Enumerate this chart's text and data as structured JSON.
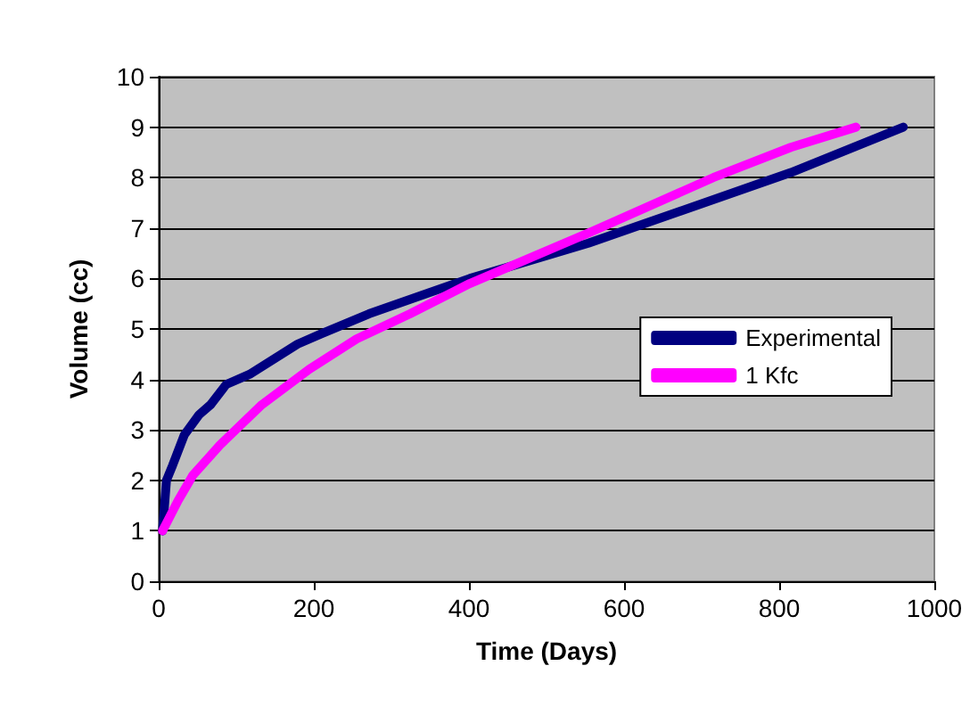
{
  "chart_data": {
    "type": "line",
    "xlabel": "Time (Days)",
    "ylabel": "Volume (cc)",
    "xlim": [
      0,
      1000
    ],
    "xticks": [
      0,
      200,
      400,
      600,
      800,
      1000
    ],
    "ylim": [
      0,
      10
    ],
    "yticks": [
      0,
      1,
      2,
      3,
      4,
      5,
      6,
      7,
      8,
      9,
      10
    ],
    "grid": "y",
    "legend": "right",
    "marker": "none",
    "line_style": "solid",
    "series": [
      {
        "name": "Experimental",
        "color": "#000080",
        "x": [
          5,
          10,
          18,
          33,
          52,
          67,
          87,
          117,
          179,
          209,
          271,
          401,
          554,
          815,
          960
        ],
        "values": [
          1.0,
          2.0,
          2.3,
          2.9,
          3.3,
          3.5,
          3.9,
          4.1,
          4.7,
          4.9,
          5.3,
          6.0,
          6.7,
          8.1,
          9.0
        ]
      },
      {
        "name": "1 Kfc",
        "color": "#ff00ff",
        "x": [
          5,
          25,
          44,
          79,
          133,
          194,
          255,
          324,
          401,
          554,
          715,
          815,
          899
        ],
        "values": [
          1.0,
          1.6,
          2.1,
          2.7,
          3.5,
          4.2,
          4.8,
          5.3,
          5.9,
          6.9,
          8.0,
          8.6,
          9.0
        ]
      }
    ]
  }
}
